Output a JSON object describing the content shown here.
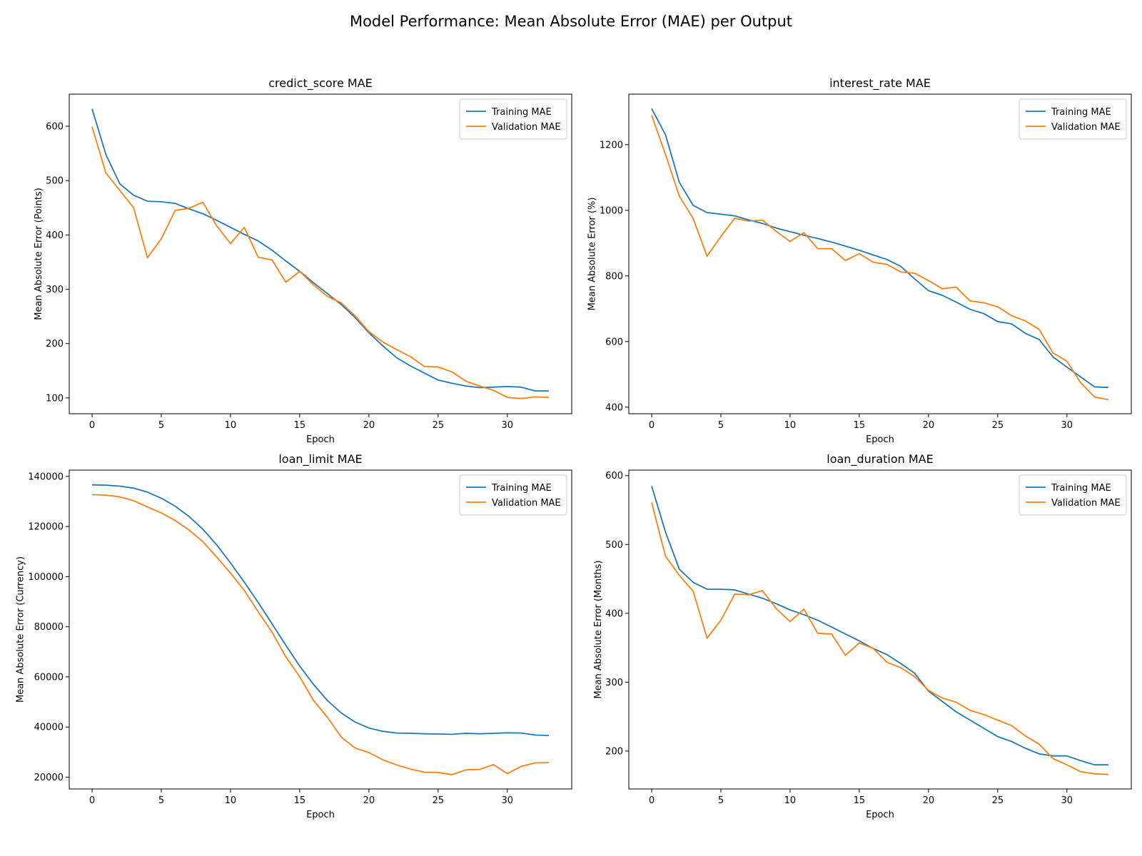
{
  "figure": {
    "suptitle": "Model Performance: Mean Absolute Error (MAE) per Output"
  },
  "colors": {
    "training": "#1f77b4",
    "validation": "#ff7f0e"
  },
  "chart_data": [
    {
      "type": "line",
      "title": "credict_score MAE",
      "xlabel": "Epoch",
      "ylabel": "Mean Absolute Error (Points)",
      "xlim": [
        -1.65,
        34.65
      ],
      "ylim": [
        71,
        659
      ],
      "xticks": [
        0,
        5,
        10,
        15,
        20,
        25,
        30
      ],
      "yticks": [
        100,
        200,
        300,
        400,
        500,
        600
      ],
      "legend": "top-right",
      "x": [
        0,
        1,
        2,
        3,
        4,
        5,
        6,
        7,
        8,
        9,
        10,
        11,
        12,
        13,
        14,
        15,
        16,
        17,
        18,
        19,
        20,
        21,
        22,
        23,
        24,
        25,
        26,
        27,
        28,
        29,
        30,
        31,
        32,
        33
      ],
      "series": [
        {
          "name": "Training MAE",
          "values": [
            632,
            548,
            494,
            473,
            462,
            461,
            458,
            448,
            439,
            427,
            414,
            401,
            389,
            372,
            352,
            333,
            312,
            292,
            272,
            248,
            220,
            196,
            174,
            159,
            146,
            133,
            127,
            122,
            119,
            120,
            121,
            120,
            113,
            113
          ]
        },
        {
          "name": "Validation MAE",
          "values": [
            599,
            514,
            482,
            450,
            358,
            393,
            445,
            449,
            460,
            417,
            384,
            414,
            359,
            354,
            313,
            333,
            308,
            287,
            275,
            251,
            222,
            203,
            189,
            176,
            158,
            157,
            148,
            131,
            122,
            114,
            101,
            99,
            102,
            101
          ]
        }
      ]
    },
    {
      "type": "line",
      "title": "interest_rate MAE",
      "xlabel": "Epoch",
      "ylabel": "Mean Absolute Error (%)",
      "xlim": [
        -1.65,
        34.65
      ],
      "ylim": [
        380,
        1354
      ],
      "xticks": [
        0,
        5,
        10,
        15,
        20,
        25,
        30
      ],
      "yticks": [
        400,
        600,
        800,
        1000,
        1200
      ],
      "legend": "top-right",
      "x": [
        0,
        1,
        2,
        3,
        4,
        5,
        6,
        7,
        8,
        9,
        10,
        11,
        12,
        13,
        14,
        15,
        16,
        17,
        18,
        19,
        20,
        21,
        22,
        23,
        24,
        25,
        26,
        27,
        28,
        29,
        30,
        31,
        32,
        33
      ],
      "series": [
        {
          "name": "Training MAE",
          "values": [
            1310,
            1230,
            1085,
            1015,
            993,
            988,
            983,
            971,
            960,
            946,
            935,
            924,
            914,
            903,
            891,
            878,
            864,
            850,
            829,
            791,
            755,
            741,
            720,
            698,
            685,
            661,
            654,
            625,
            606,
            553,
            522,
            492,
            462,
            460
          ]
        },
        {
          "name": "Validation MAE",
          "values": [
            1290,
            1170,
            1043,
            975,
            860,
            920,
            976,
            967,
            970,
            936,
            905,
            932,
            883,
            883,
            847,
            868,
            842,
            835,
            812,
            808,
            786,
            761,
            766,
            724,
            718,
            706,
            679,
            663,
            637,
            565,
            540,
            474,
            431,
            423
          ]
        }
      ]
    },
    {
      "type": "line",
      "title": "loan_limit MAE",
      "xlabel": "Epoch",
      "ylabel": "Mean Absolute Error (Currency)",
      "xlim": [
        -1.65,
        34.65
      ],
      "ylim": [
        15300,
        142500
      ],
      "xticks": [
        0,
        5,
        10,
        15,
        20,
        25,
        30
      ],
      "yticks": [
        20000,
        40000,
        60000,
        80000,
        100000,
        120000,
        140000
      ],
      "legend": "top-right",
      "x": [
        0,
        1,
        2,
        3,
        4,
        5,
        6,
        7,
        8,
        9,
        10,
        11,
        12,
        13,
        14,
        15,
        16,
        17,
        18,
        19,
        20,
        21,
        22,
        23,
        24,
        25,
        26,
        27,
        28,
        29,
        30,
        31,
        32,
        33
      ],
      "series": [
        {
          "name": "Training MAE",
          "values": [
            136600,
            136500,
            136100,
            135300,
            133700,
            131300,
            128100,
            124000,
            118900,
            112700,
            105500,
            97800,
            89700,
            81200,
            72600,
            64300,
            57000,
            50600,
            45600,
            42000,
            39600,
            38300,
            37600,
            37500,
            37300,
            37200,
            37100,
            37500,
            37300,
            37500,
            37700,
            37600,
            36800,
            36600
          ]
        },
        {
          "name": "Validation MAE",
          "values": [
            132700,
            132500,
            131800,
            130300,
            127800,
            125400,
            122400,
            118600,
            114000,
            107800,
            101400,
            94500,
            86000,
            77900,
            68000,
            60100,
            50600,
            43900,
            36000,
            31600,
            29800,
            26900,
            24900,
            23200,
            22000,
            21900,
            21000,
            22900,
            23100,
            25000,
            21400,
            24300,
            25700,
            25800
          ]
        }
      ]
    },
    {
      "type": "line",
      "title": "loan_duration MAE",
      "xlabel": "Epoch",
      "ylabel": "Mean Absolute Error (Months)",
      "xlim": [
        -1.65,
        34.65
      ],
      "ylim": [
        145,
        608
      ],
      "xticks": [
        0,
        5,
        10,
        15,
        20,
        25,
        30
      ],
      "yticks": [
        200,
        300,
        400,
        500,
        600
      ],
      "legend": "top-right",
      "x": [
        0,
        1,
        2,
        3,
        4,
        5,
        6,
        7,
        8,
        9,
        10,
        11,
        12,
        13,
        14,
        15,
        16,
        17,
        18,
        19,
        20,
        21,
        22,
        23,
        24,
        25,
        26,
        27,
        28,
        29,
        30,
        31,
        32,
        33
      ],
      "series": [
        {
          "name": "Training MAE",
          "values": [
            585,
            518,
            464,
            445,
            435,
            435,
            434,
            428,
            422,
            414,
            405,
            398,
            390,
            380,
            370,
            360,
            349,
            340,
            327,
            313,
            287,
            272,
            257,
            245,
            233,
            221,
            214,
            204,
            196,
            193,
            193,
            186,
            180,
            180
          ]
        },
        {
          "name": "Validation MAE",
          "values": [
            561,
            483,
            455,
            432,
            364,
            390,
            428,
            427,
            433,
            407,
            388,
            406,
            371,
            370,
            339,
            357,
            349,
            329,
            321,
            308,
            288,
            277,
            271,
            259,
            253,
            245,
            237,
            222,
            210,
            189,
            180,
            170,
            167,
            166
          ]
        }
      ]
    }
  ]
}
